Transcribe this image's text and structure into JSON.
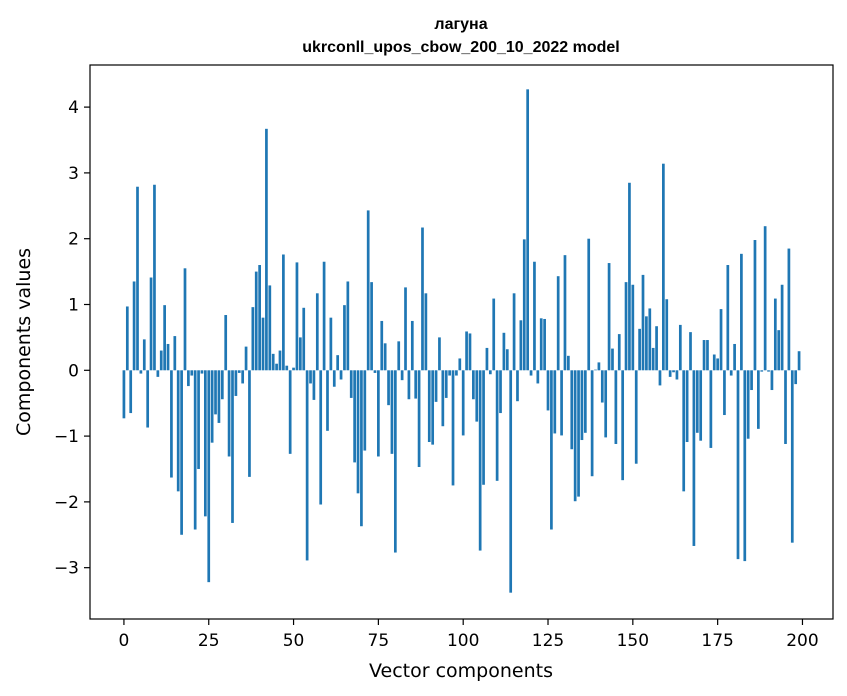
{
  "chart_data": {
    "type": "bar",
    "title": "лагуна",
    "subtitle": "ukrconll_upos_cbow_200_10_2022 model",
    "xlabel": "Vector components",
    "ylabel": "Components values",
    "xlim": [
      -10,
      209
    ],
    "ylim": [
      -3.78,
      4.64
    ],
    "xticks": [
      0,
      25,
      50,
      75,
      100,
      125,
      150,
      175,
      200
    ],
    "xtick_labels": [
      "0",
      "25",
      "50",
      "75",
      "100",
      "125",
      "150",
      "175",
      "200"
    ],
    "yticks": [
      -3,
      -2,
      -1,
      0,
      1,
      2,
      3,
      4
    ],
    "ytick_labels": [
      "−3",
      "−2",
      "−1",
      "0",
      "1",
      "2",
      "3",
      "4"
    ],
    "grid": false,
    "bar_color": "#1f77b4",
    "x": [
      0,
      1,
      2,
      3,
      4,
      5,
      6,
      7,
      8,
      9,
      10,
      11,
      12,
      13,
      14,
      15,
      16,
      17,
      18,
      19,
      20,
      21,
      22,
      23,
      24,
      25,
      26,
      27,
      28,
      29,
      30,
      31,
      32,
      33,
      34,
      35,
      36,
      37,
      38,
      39,
      40,
      41,
      42,
      43,
      44,
      45,
      46,
      47,
      48,
      49,
      50,
      51,
      52,
      53,
      54,
      55,
      56,
      57,
      58,
      59,
      60,
      61,
      62,
      63,
      64,
      65,
      66,
      67,
      68,
      69,
      70,
      71,
      72,
      73,
      74,
      75,
      76,
      77,
      78,
      79,
      80,
      81,
      82,
      83,
      84,
      85,
      86,
      87,
      88,
      89,
      90,
      91,
      92,
      93,
      94,
      95,
      96,
      97,
      98,
      99,
      100,
      101,
      102,
      103,
      104,
      105,
      106,
      107,
      108,
      109,
      110,
      111,
      112,
      113,
      114,
      115,
      116,
      117,
      118,
      119,
      120,
      121,
      122,
      123,
      124,
      125,
      126,
      127,
      128,
      129,
      130,
      131,
      132,
      133,
      134,
      135,
      136,
      137,
      138,
      139,
      140,
      141,
      142,
      143,
      144,
      145,
      146,
      147,
      148,
      149,
      150,
      151,
      152,
      153,
      154,
      155,
      156,
      157,
      158,
      159,
      160,
      161,
      162,
      163,
      164,
      165,
      166,
      167,
      168,
      169,
      170,
      171,
      172,
      173,
      174,
      175,
      176,
      177,
      178,
      179,
      180,
      181,
      182,
      183,
      184,
      185,
      186,
      187,
      188,
      189,
      190,
      191,
      192,
      193,
      194,
      195,
      196,
      197,
      198,
      199
    ],
    "values": [
      -0.73,
      0.97,
      -0.65,
      1.35,
      2.79,
      -0.05,
      0.47,
      -0.87,
      1.41,
      2.82,
      -0.1,
      0.3,
      0.99,
      0.4,
      -1.63,
      0.52,
      -1.84,
      -2.5,
      1.55,
      -0.24,
      -0.08,
      -2.42,
      -1.5,
      -0.05,
      -2.22,
      -3.22,
      -1.1,
      -0.67,
      -0.8,
      -0.44,
      0.84,
      -1.31,
      -2.32,
      -0.39,
      -0.04,
      -0.2,
      0.36,
      -1.62,
      0.96,
      1.5,
      1.6,
      0.8,
      3.67,
      1.29,
      0.25,
      0.1,
      0.3,
      1.76,
      0.07,
      -1.27,
      0.04,
      1.64,
      0.5,
      0.95,
      -2.89,
      -0.2,
      -0.45,
      1.17,
      -2.04,
      1.65,
      -0.92,
      0.8,
      -0.25,
      0.23,
      -0.14,
      0.99,
      1.35,
      -0.42,
      -1.4,
      -1.87,
      -2.37,
      -1.22,
      2.43,
      1.34,
      -0.04,
      -1.31,
      0.75,
      0.41,
      -0.53,
      -1.27,
      -2.77,
      0.44,
      -0.15,
      1.26,
      -0.44,
      0.75,
      -0.43,
      -1.47,
      2.17,
      1.17,
      -1.09,
      -1.13,
      -0.48,
      0.5,
      -0.85,
      -0.42,
      -0.08,
      -1.75,
      -0.08,
      0.18,
      -0.99,
      0.59,
      0.56,
      -0.44,
      -0.78,
      -2.74,
      -1.74,
      0.34,
      -0.06,
      1.09,
      -1.68,
      -0.65,
      0.57,
      0.32,
      -3.38,
      1.17,
      -0.47,
      0.76,
      1.99,
      4.27,
      -0.08,
      1.65,
      -0.2,
      0.79,
      0.78,
      -0.61,
      -2.42,
      -0.96,
      1.43,
      -0.99,
      1.75,
      0.22,
      -1.2,
      -1.99,
      -1.92,
      -1.06,
      -0.95,
      2.0,
      -1.61,
      0.01,
      0.12,
      -0.49,
      -1.02,
      1.63,
      0.33,
      -1.12,
      0.55,
      -1.67,
      1.34,
      2.85,
      1.3,
      -1.42,
      0.63,
      1.45,
      0.82,
      0.94,
      0.34,
      0.67,
      -0.23,
      3.14,
      1.08,
      -0.1,
      -0.03,
      -0.14,
      0.69,
      -1.84,
      -1.09,
      0.58,
      -2.67,
      -0.95,
      -1.07,
      0.46,
      0.46,
      -1.18,
      0.24,
      0.18,
      0.93,
      -0.68,
      1.6,
      -0.08,
      0.4,
      -2.87,
      1.77,
      -2.9,
      -1.04,
      -0.3,
      1.98,
      -0.89,
      -0.02,
      2.19,
      -0.02,
      -0.3,
      1.09,
      0.61,
      1.3,
      -1.12,
      1.85,
      -2.62,
      -0.21,
      0.29
    ]
  }
}
